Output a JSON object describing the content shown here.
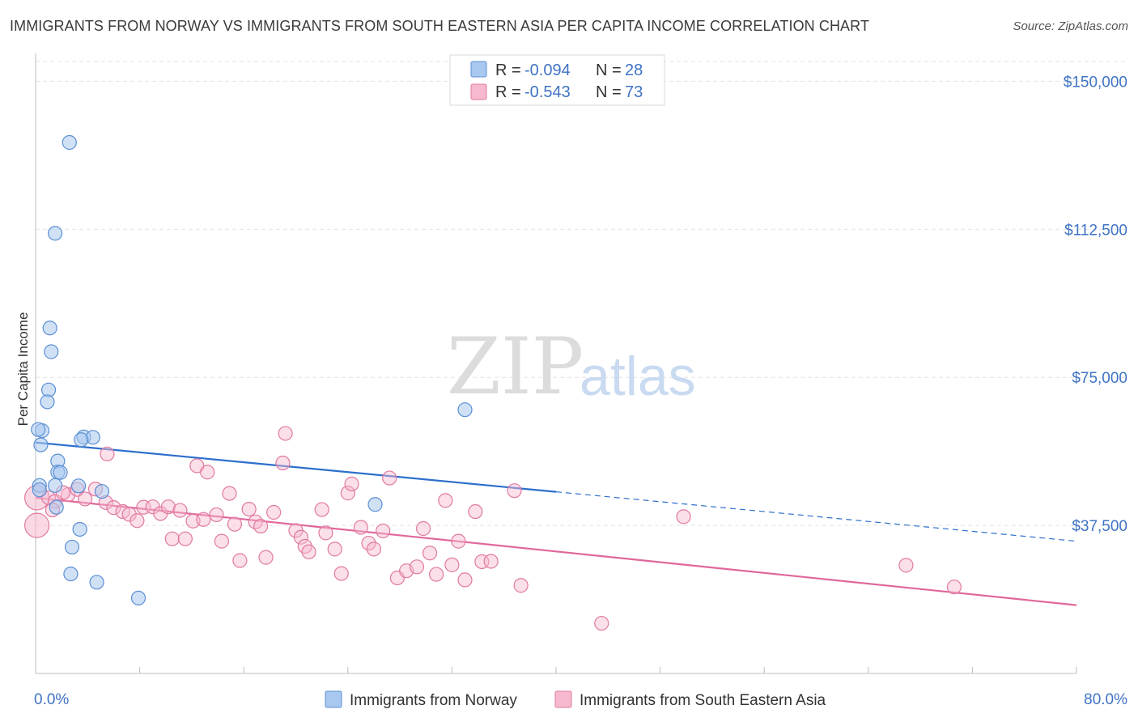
{
  "title": "IMMIGRANTS FROM NORWAY VS IMMIGRANTS FROM SOUTH EASTERN ASIA PER CAPITA INCOME CORRELATION CHART",
  "source": "Source: ZipAtlas.com",
  "watermark": {
    "zip": "ZIP",
    "atlas": "atlas"
  },
  "colors": {
    "norway_fill": "#a9c8ef",
    "norway_stroke": "#5b8fd4",
    "norway_line": "#2d6fcc",
    "sea_fill": "#f6b9cf",
    "sea_stroke": "#e07aa0",
    "sea_line": "#e0679a",
    "tick_label": "#3f73c4",
    "grid": "#e3e3e3"
  },
  "legend": {
    "rows": [
      {
        "r_label": "R =",
        "r_value": "-0.094",
        "n_label": "N =",
        "n_value": "28"
      },
      {
        "r_label": "R =",
        "r_value": "-0.543",
        "n_label": "N =",
        "n_value": "73"
      }
    ]
  },
  "chart_data": {
    "type": "scatter",
    "title": "IMMIGRANTS FROM NORWAY VS IMMIGRANTS FROM SOUTH EASTERN ASIA PER CAPITA INCOME CORRELATION CHART",
    "xlabel": "",
    "ylabel": "Per Capita Income",
    "xlim": [
      0,
      80
    ],
    "ylim": [
      0,
      155000
    ],
    "x_tick_labels": [
      "0.0%",
      "80.0%"
    ],
    "y_ticks": [
      37500,
      75000,
      112500,
      150000
    ],
    "y_tick_labels": [
      "$37,500",
      "$75,000",
      "$112,500",
      "$150,000"
    ],
    "grid": true,
    "legend_position": "top-center",
    "series": [
      {
        "name": "Immigrants from Norway",
        "r": -0.094,
        "n": 28,
        "trend": {
          "x0": 0,
          "y0": 58500,
          "x1": 40,
          "y1": 46000,
          "dash_to_x": 80,
          "dash_to_y": 33500
        },
        "points": [
          [
            2.6,
            134500
          ],
          [
            1.5,
            111500
          ],
          [
            1.1,
            87500
          ],
          [
            1.2,
            81500
          ],
          [
            1.0,
            71800
          ],
          [
            0.9,
            68800
          ],
          [
            33.0,
            66800
          ],
          [
            0.5,
            61500
          ],
          [
            0.2,
            61800
          ],
          [
            0.4,
            57900
          ],
          [
            3.7,
            59900
          ],
          [
            4.4,
            59800
          ],
          [
            3.5,
            59200
          ],
          [
            1.7,
            53800
          ],
          [
            1.7,
            51000
          ],
          [
            1.9,
            50900
          ],
          [
            0.3,
            47600
          ],
          [
            0.3,
            46500
          ],
          [
            1.5,
            47600
          ],
          [
            3.3,
            47500
          ],
          [
            5.1,
            46100
          ],
          [
            26.1,
            42800
          ],
          [
            1.6,
            42100
          ],
          [
            3.4,
            36500
          ],
          [
            2.8,
            32000
          ],
          [
            2.7,
            25200
          ],
          [
            4.7,
            23100
          ],
          [
            7.9,
            19100
          ]
        ]
      },
      {
        "name": "Immigrants from South Eastern Asia",
        "r": -0.543,
        "n": 73,
        "trend": {
          "x0": 0,
          "y0": 44500,
          "x1": 80,
          "y1": 17300
        },
        "points": [
          [
            0.1,
            44500,
            "big"
          ],
          [
            0.1,
            37500,
            "big"
          ],
          [
            1.0,
            44500
          ],
          [
            1.5,
            43600
          ],
          [
            2.5,
            45300
          ],
          [
            3.2,
            46600
          ],
          [
            3.8,
            44200
          ],
          [
            4.6,
            46700
          ],
          [
            5.4,
            43300
          ],
          [
            5.5,
            55600
          ],
          [
            6.0,
            42000
          ],
          [
            6.7,
            41000
          ],
          [
            7.2,
            40300
          ],
          [
            7.8,
            38700
          ],
          [
            8.3,
            42100
          ],
          [
            9.0,
            42200
          ],
          [
            9.6,
            40500
          ],
          [
            10.2,
            42200
          ],
          [
            10.5,
            34100
          ],
          [
            11.1,
            41300
          ],
          [
            11.5,
            34100
          ],
          [
            12.1,
            38600
          ],
          [
            12.4,
            52600
          ],
          [
            12.9,
            39000
          ],
          [
            13.2,
            51000
          ],
          [
            13.9,
            40200
          ],
          [
            14.3,
            33500
          ],
          [
            14.9,
            45600
          ],
          [
            15.3,
            37800
          ],
          [
            15.7,
            28600
          ],
          [
            16.4,
            41600
          ],
          [
            16.9,
            38400
          ],
          [
            17.3,
            37300
          ],
          [
            17.7,
            29400
          ],
          [
            18.3,
            40800
          ],
          [
            19.0,
            53300
          ],
          [
            19.2,
            60800
          ],
          [
            20.0,
            36200
          ],
          [
            20.4,
            34500
          ],
          [
            20.7,
            32200
          ],
          [
            21.0,
            30800
          ],
          [
            22.0,
            41500
          ],
          [
            22.3,
            35600
          ],
          [
            23.0,
            31500
          ],
          [
            23.5,
            25300
          ],
          [
            24.0,
            45700
          ],
          [
            24.3,
            48000
          ],
          [
            25.0,
            37000
          ],
          [
            25.6,
            33000
          ],
          [
            26.0,
            31500
          ],
          [
            26.7,
            36100
          ],
          [
            27.2,
            49500
          ],
          [
            27.8,
            24200
          ],
          [
            28.5,
            26000
          ],
          [
            29.3,
            27000
          ],
          [
            29.8,
            36700
          ],
          [
            30.3,
            30500
          ],
          [
            30.8,
            25100
          ],
          [
            31.5,
            43800
          ],
          [
            32.0,
            27500
          ],
          [
            32.5,
            33500
          ],
          [
            33.0,
            23700
          ],
          [
            33.8,
            41000
          ],
          [
            34.3,
            28300
          ],
          [
            35.0,
            28400
          ],
          [
            36.8,
            46300
          ],
          [
            37.3,
            22300
          ],
          [
            43.5,
            12700
          ],
          [
            49.8,
            39700
          ],
          [
            66.9,
            27400
          ],
          [
            70.6,
            21900
          ],
          [
            2.1,
            45800
          ],
          [
            1.3,
            41400
          ]
        ]
      }
    ]
  },
  "bottom_legend": {
    "norway": "Immigrants from Norway",
    "sea": "Immigrants from South Eastern Asia"
  }
}
